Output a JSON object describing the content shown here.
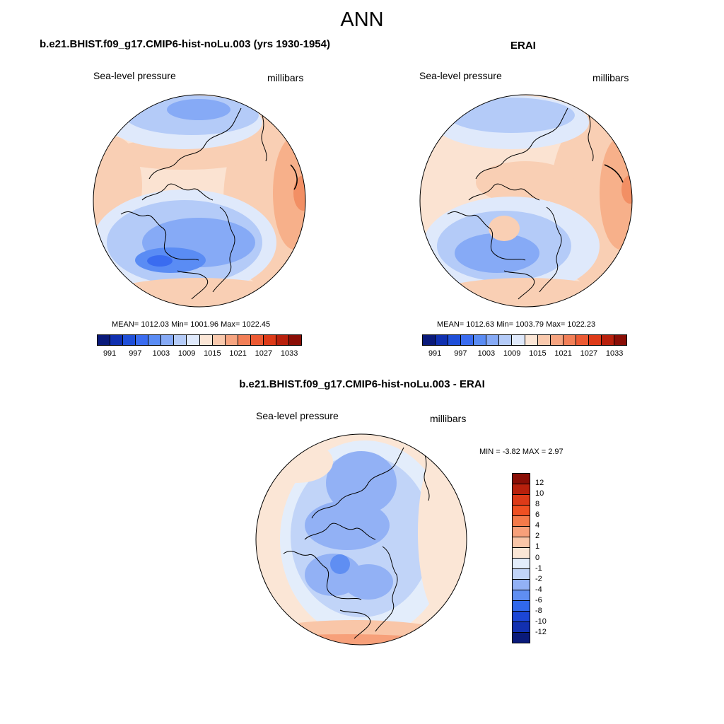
{
  "figure": {
    "title": "ANN"
  },
  "panels": {
    "model": {
      "title": "b.e21.BHIST.f09_g17.CMIP6-hist-noLu.003 (yrs 1930-1954)",
      "variable": "Sea-level pressure",
      "units": "millibars",
      "stats": "MEAN= 1012.03  Min= 1001.96  Max= 1022.45"
    },
    "obs": {
      "title": "ERAI",
      "variable": "Sea-level pressure",
      "units": "millibars",
      "stats": "MEAN= 1012.63  Min= 1003.79  Max= 1022.23"
    },
    "diff": {
      "title": "b.e21.BHIST.f09_g17.CMIP6-hist-noLu.003 - ERAI",
      "variable": "Sea-level pressure",
      "units": "millibars",
      "stats": "MIN =  -3.82 MAX =   2.97"
    }
  },
  "colorbar_abs": {
    "tick_labels": [
      "991",
      "997",
      "1003",
      "1009",
      "1015",
      "1021",
      "1027",
      "1033"
    ],
    "colors": [
      "#0a1a7a",
      "#1030b0",
      "#1f4fd8",
      "#3a6cf0",
      "#5a8cf4",
      "#86aaf6",
      "#b4cbf8",
      "#dfe9fb",
      "#fbe6d6",
      "#f9c9ad",
      "#f6a480",
      "#f27f57",
      "#ec5a33",
      "#dd3a18",
      "#b8200c",
      "#8a0e06"
    ]
  },
  "colorbar_diff": {
    "tick_labels": [
      "12",
      "10",
      "8",
      "6",
      "4",
      "2",
      "1",
      "0",
      "-1",
      "-2",
      "-4",
      "-6",
      "-8",
      "-10",
      "-12"
    ],
    "colors": [
      "#8a0e06",
      "#b8200c",
      "#dd3a18",
      "#ef5022",
      "#f47a4a",
      "#f7a07a",
      "#f9c6a8",
      "#fbe6d6",
      "#e3edfb",
      "#c1d4f8",
      "#92b1f5",
      "#5f8ef2",
      "#3168ec",
      "#1c46d6",
      "#1230b0",
      "#0a1a7a"
    ]
  },
  "colors": {
    "ocean_warm": "#fbe3d2",
    "high_pressure": "#f7b08a",
    "low_pressure": "#86aaf6",
    "coastline": "#000000"
  }
}
